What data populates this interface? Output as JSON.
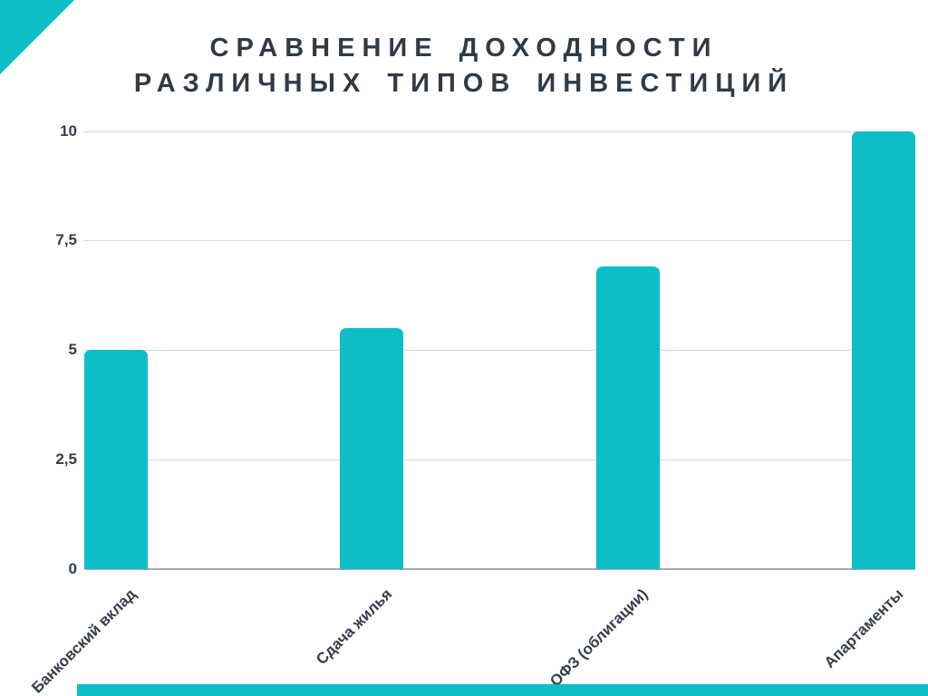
{
  "title": {
    "line1": "СРАВНЕНИЕ ДОХОДНОСТИ",
    "line2": "РАЗЛИЧНЫХ ТИПОВ ИНВЕСТИЦИЙ"
  },
  "chart_data": {
    "type": "bar",
    "title": "СРАВНЕНИЕ ДОХОДНОСТИ РАЗЛИЧНЫХ ТИПОВ ИНВЕСТИЦИЙ",
    "categories": [
      "Банковский вклад",
      "Сдача жилья",
      "ОФЗ (облигации)",
      "Апартаменты"
    ],
    "values": [
      5,
      5.5,
      6.9,
      10
    ],
    "xlabel": "",
    "ylabel": "",
    "ylim": [
      0,
      10
    ],
    "yticks": [
      0,
      2.5,
      5,
      7.5,
      10
    ],
    "ytick_labels": [
      "0",
      "2,5",
      "5",
      "7,5",
      "10"
    ],
    "grid": true,
    "legend": false,
    "x_tick_rotation_deg": 45
  },
  "colors": {
    "bar_teal": "#0bbec7",
    "accent_teal": "#0bbec7",
    "title_ink": "#2e3b49",
    "axis_label_ink": "#323e4c",
    "gridline_gray": "#d8d8d8",
    "baseline_gray": "#a9a9a9",
    "background": "#ffffff"
  }
}
